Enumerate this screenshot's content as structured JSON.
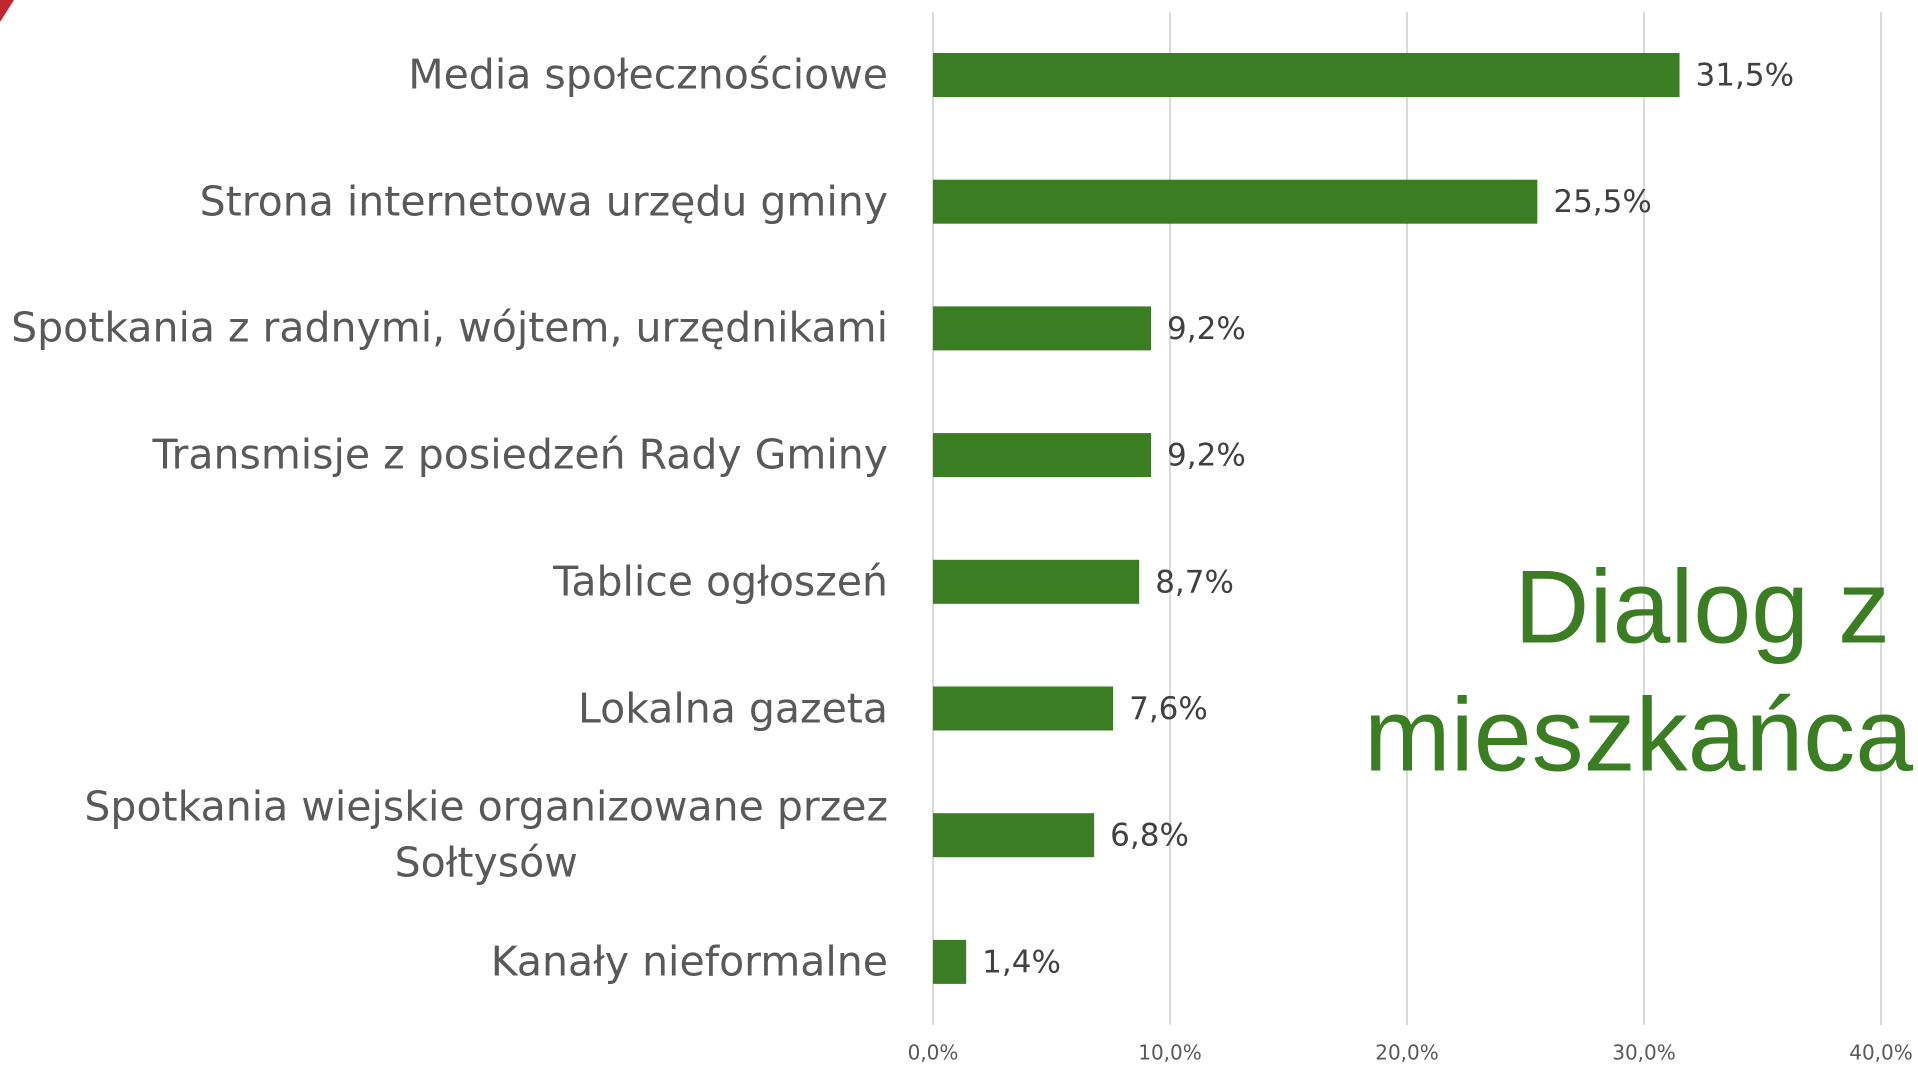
{
  "chart_data": {
    "type": "barh",
    "title": [
      "Dialog z",
      "mieszkańca"
    ],
    "categories": [
      "Media społecznościowe",
      "Strona internetowa urzędu gminy",
      "Spotkania z radnymi, wójtem, urzędnikami",
      "Transmisje z posiedzeń Rady Gminy",
      "Tablice ogłoszeń",
      "Lokalna gazeta",
      "Spotkania wiejskie organizowane przez\nSołtysów",
      "Kanały nieformalne"
    ],
    "values": [
      31.5,
      25.5,
      9.2,
      9.2,
      8.7,
      7.6,
      6.8,
      1.4
    ],
    "value_labels": [
      "31,5%",
      "25,5%",
      "9,2%",
      "9,2%",
      "8,7%",
      "7,6%",
      "6,8%",
      "1,4%"
    ],
    "color": "#3a7d22",
    "xlim": [
      0,
      40
    ],
    "xticks": [
      {
        "value": 0,
        "label": "0,0%"
      },
      {
        "value": 10,
        "label": "10,0%"
      },
      {
        "value": 20,
        "label": "20,0%"
      },
      {
        "value": 30,
        "label": "30,0%"
      },
      {
        "value": 40,
        "label": "40,0%"
      }
    ],
    "grid": true
  }
}
